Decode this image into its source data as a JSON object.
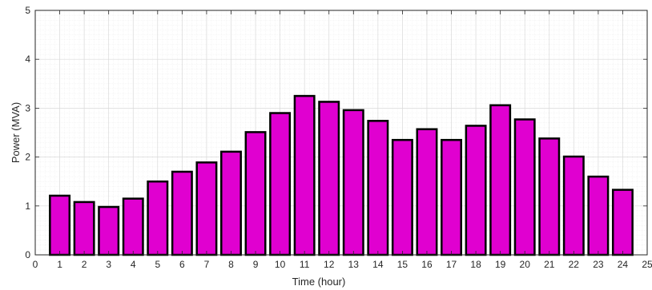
{
  "chart_data": {
    "type": "bar",
    "title": "",
    "xlabel": "Time (hour)",
    "ylabel": "Power (MVA)",
    "x": [
      1,
      2,
      3,
      4,
      5,
      6,
      7,
      8,
      9,
      10,
      11,
      12,
      13,
      14,
      15,
      16,
      17,
      18,
      19,
      20,
      21,
      22,
      23,
      24
    ],
    "values": [
      1.21,
      1.08,
      0.98,
      1.15,
      1.5,
      1.7,
      1.89,
      2.11,
      2.51,
      2.9,
      3.25,
      3.13,
      2.96,
      2.74,
      2.35,
      2.57,
      2.35,
      2.64,
      3.06,
      2.77,
      2.38,
      2.01,
      1.6,
      1.33
    ],
    "xlim": [
      0,
      25
    ],
    "ylim": [
      0,
      5
    ],
    "xticks": [
      "0",
      "1",
      "2",
      "3",
      "4",
      "5",
      "6",
      "7",
      "8",
      "9",
      "10",
      "11",
      "12",
      "13",
      "14",
      "15",
      "16",
      "17",
      "18",
      "19",
      "20",
      "21",
      "22",
      "23",
      "24",
      "25"
    ],
    "yticks": [
      "0",
      "1",
      "2",
      "3",
      "4",
      "5"
    ],
    "grid": true,
    "minor_grid": true,
    "colors": {
      "bar_fill": "#e000d0",
      "bar_edge": "#000000",
      "grid": "#d9d9d9",
      "minor_grid": "#ececec",
      "axis": "#262626"
    }
  }
}
